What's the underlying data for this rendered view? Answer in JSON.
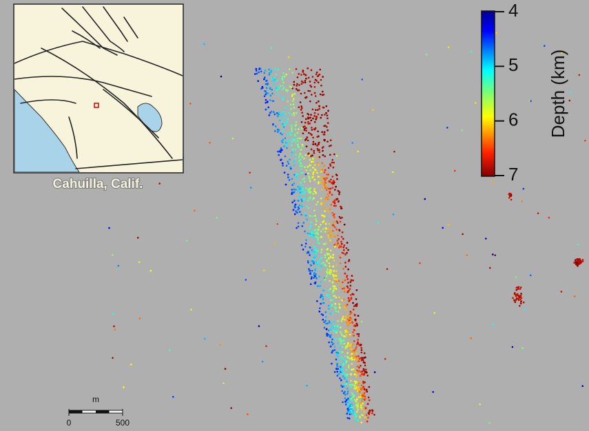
{
  "inset": {
    "label": "Cahuilla, Calif."
  },
  "colorbar": {
    "title": "Depth (km)",
    "lim": [
      4,
      7
    ],
    "ticks": [
      4,
      5,
      6,
      7
    ]
  },
  "scale_bar": {
    "unit": "m",
    "ticks": [
      0,
      500
    ]
  }
}
